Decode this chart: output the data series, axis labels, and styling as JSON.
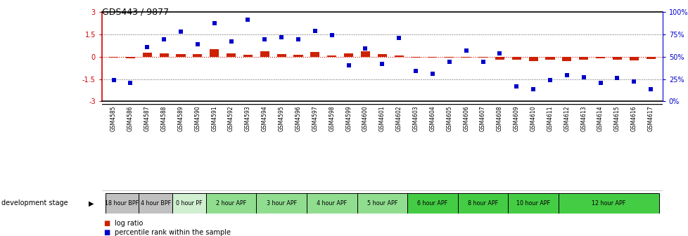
{
  "title": "GDS443 / 9877",
  "samples": [
    "GSM4585",
    "GSM4586",
    "GSM4587",
    "GSM4588",
    "GSM4589",
    "GSM4590",
    "GSM4591",
    "GSM4592",
    "GSM4593",
    "GSM4594",
    "GSM4595",
    "GSM4596",
    "GSM4597",
    "GSM4598",
    "GSM4599",
    "GSM4600",
    "GSM4601",
    "GSM4602",
    "GSM4603",
    "GSM4604",
    "GSM4605",
    "GSM4606",
    "GSM4607",
    "GSM4608",
    "GSM4609",
    "GSM4610",
    "GSM4611",
    "GSM4612",
    "GSM4613",
    "GSM4614",
    "GSM4615",
    "GSM4616",
    "GSM4617"
  ],
  "log_ratio": [
    -0.08,
    -0.12,
    0.28,
    0.22,
    0.18,
    0.15,
    0.52,
    0.22,
    0.12,
    0.38,
    0.18,
    0.14,
    0.32,
    0.09,
    0.22,
    0.38,
    0.15,
    0.08,
    -0.06,
    -0.06,
    -0.06,
    -0.06,
    -0.06,
    -0.22,
    -0.22,
    -0.32,
    -0.22,
    -0.28,
    -0.2,
    -0.12,
    -0.22,
    -0.26,
    -0.18
  ],
  "percentile": [
    24,
    21,
    61,
    69,
    78,
    64,
    87,
    67,
    91,
    69,
    72,
    69,
    79,
    74,
    40,
    59,
    42,
    71,
    34,
    31,
    44,
    57,
    44,
    54,
    17,
    14,
    24,
    29,
    27,
    21,
    26,
    22,
    14
  ],
  "stages": [
    {
      "label": "18 hour BPF",
      "start": 0,
      "end": 2,
      "color": "#c0c0c0"
    },
    {
      "label": "4 hour BPF",
      "start": 2,
      "end": 4,
      "color": "#c0c0c0"
    },
    {
      "label": "0 hour PF",
      "start": 4,
      "end": 6,
      "color": "#d0eed0"
    },
    {
      "label": "2 hour APF",
      "start": 6,
      "end": 9,
      "color": "#90dd90"
    },
    {
      "label": "3 hour APF",
      "start": 9,
      "end": 12,
      "color": "#90dd90"
    },
    {
      "label": "4 hour APF",
      "start": 12,
      "end": 15,
      "color": "#90dd90"
    },
    {
      "label": "5 hour APF",
      "start": 15,
      "end": 18,
      "color": "#90dd90"
    },
    {
      "label": "6 hour APF",
      "start": 18,
      "end": 21,
      "color": "#44cc44"
    },
    {
      "label": "8 hour APF",
      "start": 21,
      "end": 24,
      "color": "#44cc44"
    },
    {
      "label": "10 hour APF",
      "start": 24,
      "end": 27,
      "color": "#44cc44"
    },
    {
      "label": "12 hour APF",
      "start": 27,
      "end": 33,
      "color": "#44cc44"
    }
  ],
  "bar_color": "#cc2200",
  "scatter_color": "#0000cc",
  "left_ytick_color": "#cc0000",
  "right_ytick_color": "#0000cc",
  "hline_color": "#dd0000",
  "dotline_color": "#555555",
  "ylim_left": [
    -3,
    3
  ],
  "ylim_right": [
    0,
    100
  ],
  "left_yticks": [
    -3,
    -1.5,
    0,
    1.5,
    3
  ],
  "left_yticklabels": [
    "-3",
    "-1.5",
    "0",
    "1.5",
    "3"
  ],
  "right_yticks": [
    0,
    25,
    50,
    75,
    100
  ],
  "right_yticklabels": [
    "0%",
    "25%",
    "50%",
    "75%",
    "100%"
  ]
}
